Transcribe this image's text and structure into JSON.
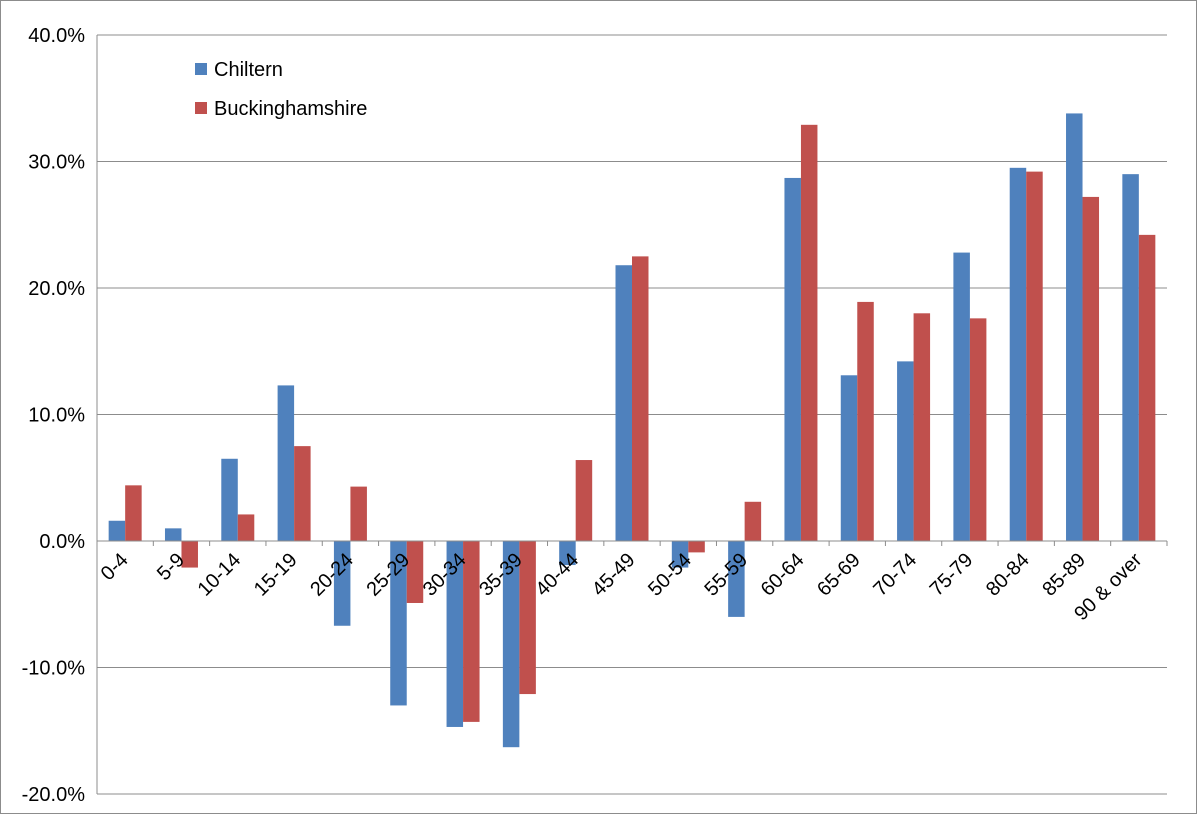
{
  "chart_data": {
    "type": "bar",
    "categories": [
      "0-4",
      "5-9",
      "10-14",
      "15-19",
      "20-24",
      "25-29",
      "30-34",
      "35-39",
      "40-44",
      "45-49",
      "50-54",
      "55-59",
      "60-64",
      "65-69",
      "70-74",
      "75-79",
      "80-84",
      "85-89",
      "90 & over"
    ],
    "series": [
      {
        "name": "Chiltern",
        "color": "#4f81bd",
        "values": [
          1.6,
          1.0,
          6.5,
          12.3,
          -6.7,
          -13.0,
          -14.7,
          -16.3,
          -1.9,
          21.8,
          -2.1,
          -6.0,
          28.7,
          13.1,
          14.2,
          22.8,
          29.5,
          33.8,
          29.0
        ]
      },
      {
        "name": "Buckinghamshire",
        "color": "#c0504d",
        "values": [
          4.4,
          -2.1,
          2.1,
          7.5,
          4.3,
          -4.9,
          -14.3,
          -12.1,
          6.4,
          22.5,
          -0.9,
          3.1,
          32.9,
          18.9,
          18.0,
          17.6,
          29.2,
          27.2,
          24.2
        ]
      }
    ],
    "y_ticks": [
      "40.0%",
      "30.0%",
      "20.0%",
      "10.0%",
      "0.0%",
      "-10.0%",
      "-20.0%"
    ],
    "ylim": [
      -20,
      40
    ],
    "y_unit": "%",
    "grid": true,
    "legend_position": "top-left",
    "title": "",
    "xlabel": "",
    "ylabel": ""
  }
}
